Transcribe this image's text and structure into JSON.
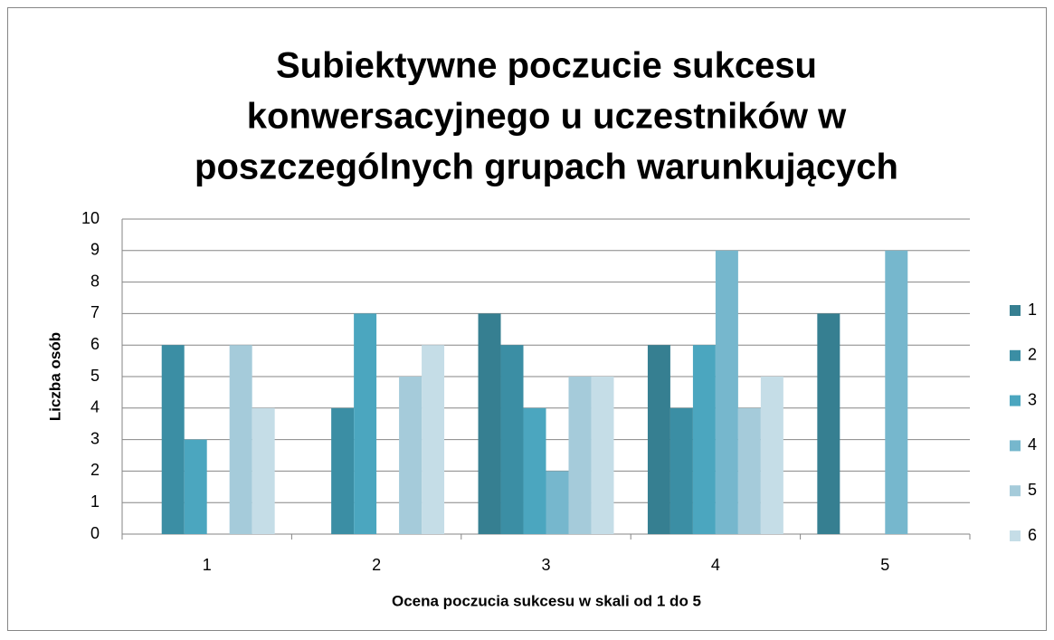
{
  "chart_data": {
    "type": "bar",
    "title": [
      "Subiektywne poczucie sukcesu",
      "konwersacyjnego u uczestników w",
      "poszczególnych  grupach warunkujących"
    ],
    "x_label": "Ocena poczucia sukcesu w skali od 1 do 5",
    "y_label": "Liczba osób",
    "categories": [
      "1",
      "2",
      "3",
      "4",
      "5"
    ],
    "series": [
      {
        "name": "1",
        "color": "#367f91",
        "values": [
          0,
          0,
          7,
          6,
          7
        ]
      },
      {
        "name": "2",
        "color": "#3b8ea4",
        "values": [
          6,
          4,
          6,
          4,
          0
        ]
      },
      {
        "name": "3",
        "color": "#4ba6bf",
        "values": [
          3,
          7,
          4,
          6,
          0
        ]
      },
      {
        "name": "4",
        "color": "#76b7cd",
        "values": [
          0,
          0,
          2,
          9,
          9
        ]
      },
      {
        "name": "5",
        "color": "#a5cbda",
        "values": [
          6,
          5,
          5,
          4,
          0
        ]
      },
      {
        "name": "6",
        "color": "#c5dde7",
        "values": [
          4,
          6,
          5,
          5,
          0
        ]
      }
    ],
    "ylim": [
      0,
      10
    ],
    "yticks": [
      0,
      1,
      2,
      3,
      4,
      5,
      6,
      7,
      8,
      9,
      10
    ],
    "grid": true,
    "legend": "right"
  }
}
